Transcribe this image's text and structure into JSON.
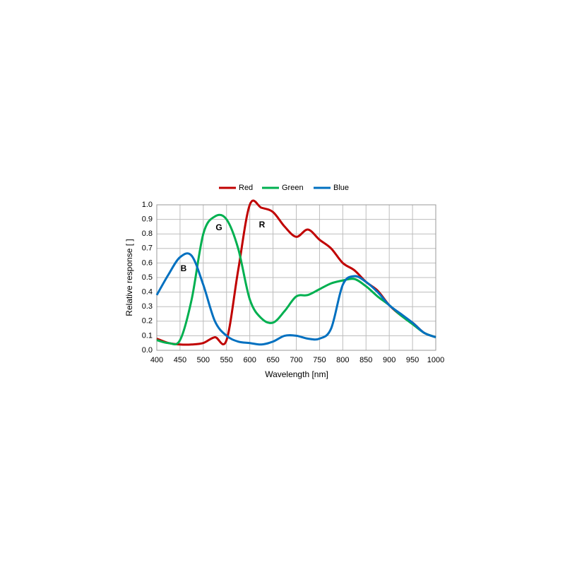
{
  "chart_data": {
    "type": "line",
    "xlabel": "Wavelength [nm]",
    "ylabel": "Relative response [ ]",
    "x": [
      400,
      425,
      450,
      475,
      500,
      525,
      550,
      575,
      600,
      625,
      650,
      675,
      700,
      725,
      750,
      775,
      800,
      825,
      850,
      875,
      900,
      925,
      950,
      975,
      1000
    ],
    "series": [
      {
        "name": "Red",
        "color": "#c00000",
        "values": [
          0.08,
          0.05,
          0.04,
          0.04,
          0.05,
          0.09,
          0.07,
          0.55,
          1.0,
          0.98,
          0.95,
          0.85,
          0.78,
          0.83,
          0.76,
          0.7,
          0.6,
          0.55,
          0.47,
          0.41,
          0.31,
          0.24,
          0.19,
          0.12,
          0.09
        ]
      },
      {
        "name": "Green",
        "color": "#00b050",
        "values": [
          0.07,
          0.05,
          0.07,
          0.35,
          0.8,
          0.92,
          0.9,
          0.7,
          0.35,
          0.22,
          0.19,
          0.27,
          0.37,
          0.38,
          0.42,
          0.46,
          0.48,
          0.49,
          0.44,
          0.37,
          0.31,
          0.24,
          0.18,
          0.12,
          0.09
        ]
      },
      {
        "name": "Blue",
        "color": "#0070c0",
        "values": [
          0.38,
          0.52,
          0.64,
          0.65,
          0.45,
          0.2,
          0.1,
          0.06,
          0.05,
          0.04,
          0.06,
          0.1,
          0.1,
          0.08,
          0.08,
          0.15,
          0.45,
          0.51,
          0.47,
          0.4,
          0.31,
          0.25,
          0.19,
          0.12,
          0.09
        ]
      }
    ],
    "annotations": [
      "B",
      "G",
      "R"
    ],
    "xlim": [
      400,
      1000
    ],
    "ylim": [
      0,
      1
    ],
    "xticks": [
      400,
      450,
      500,
      550,
      600,
      650,
      700,
      750,
      800,
      850,
      900,
      950,
      1000
    ],
    "yticks": [
      {
        "value": 0,
        "label": "0.0"
      },
      0.1,
      0.2,
      0.3,
      0.4,
      0.5,
      0.6,
      0.7,
      0.8,
      0.9,
      {
        "value": 1,
        "label": "1.0"
      }
    ],
    "grid": true,
    "legend": "top"
  }
}
